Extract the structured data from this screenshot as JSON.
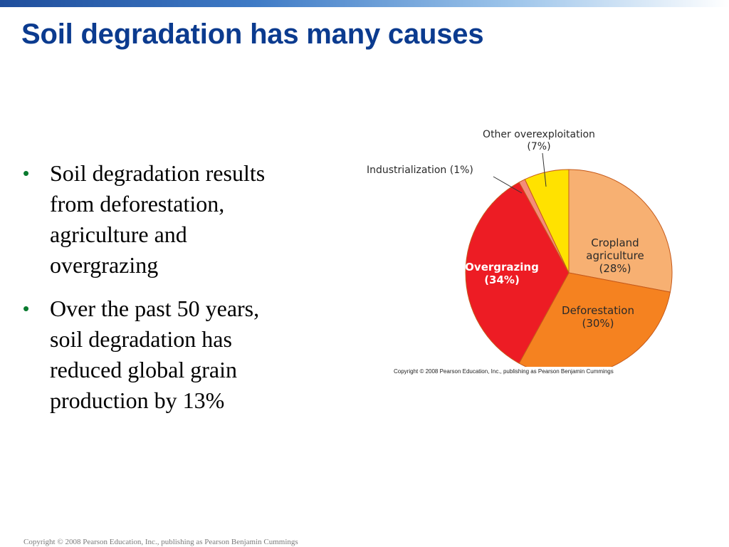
{
  "slide": {
    "title": "Soil degradation has many causes",
    "bullets": [
      {
        "lines": [
          "Soil degradation results",
          "from deforestation,",
          "agriculture and",
          "overgrazing"
        ]
      },
      {
        "lines": [
          "Over the past 50 years,",
          "soil degradation has",
          "reduced global grain",
          "production by 13%"
        ]
      }
    ],
    "bullet_symbol": "•",
    "footer": "Copyright © 2008 Pearson Education, Inc., publishing as Pearson Benjamin Cummings"
  },
  "chart_data": {
    "type": "pie",
    "series": [
      {
        "label_lines": [
          "Cropland",
          "agriculture",
          "(28%)"
        ],
        "value": 28,
        "color": "#f7b072"
      },
      {
        "label_lines": [
          "Deforestation",
          "(30%)"
        ],
        "value": 30,
        "color": "#f58220"
      },
      {
        "label_lines": [
          "Overgrazing",
          "(34%)"
        ],
        "value": 34,
        "color": "#ed1c24"
      },
      {
        "label_lines": [
          "Industrialization (1%)"
        ],
        "value": 1,
        "color": "#f48c7a"
      },
      {
        "label_lines": [
          "Other overexploitation",
          "(7%)"
        ],
        "value": 7,
        "color": "#ffe200"
      }
    ],
    "copyright": "Copyright © 2008 Pearson Education, Inc., publishing as Pearson Benjamin Cummings"
  }
}
